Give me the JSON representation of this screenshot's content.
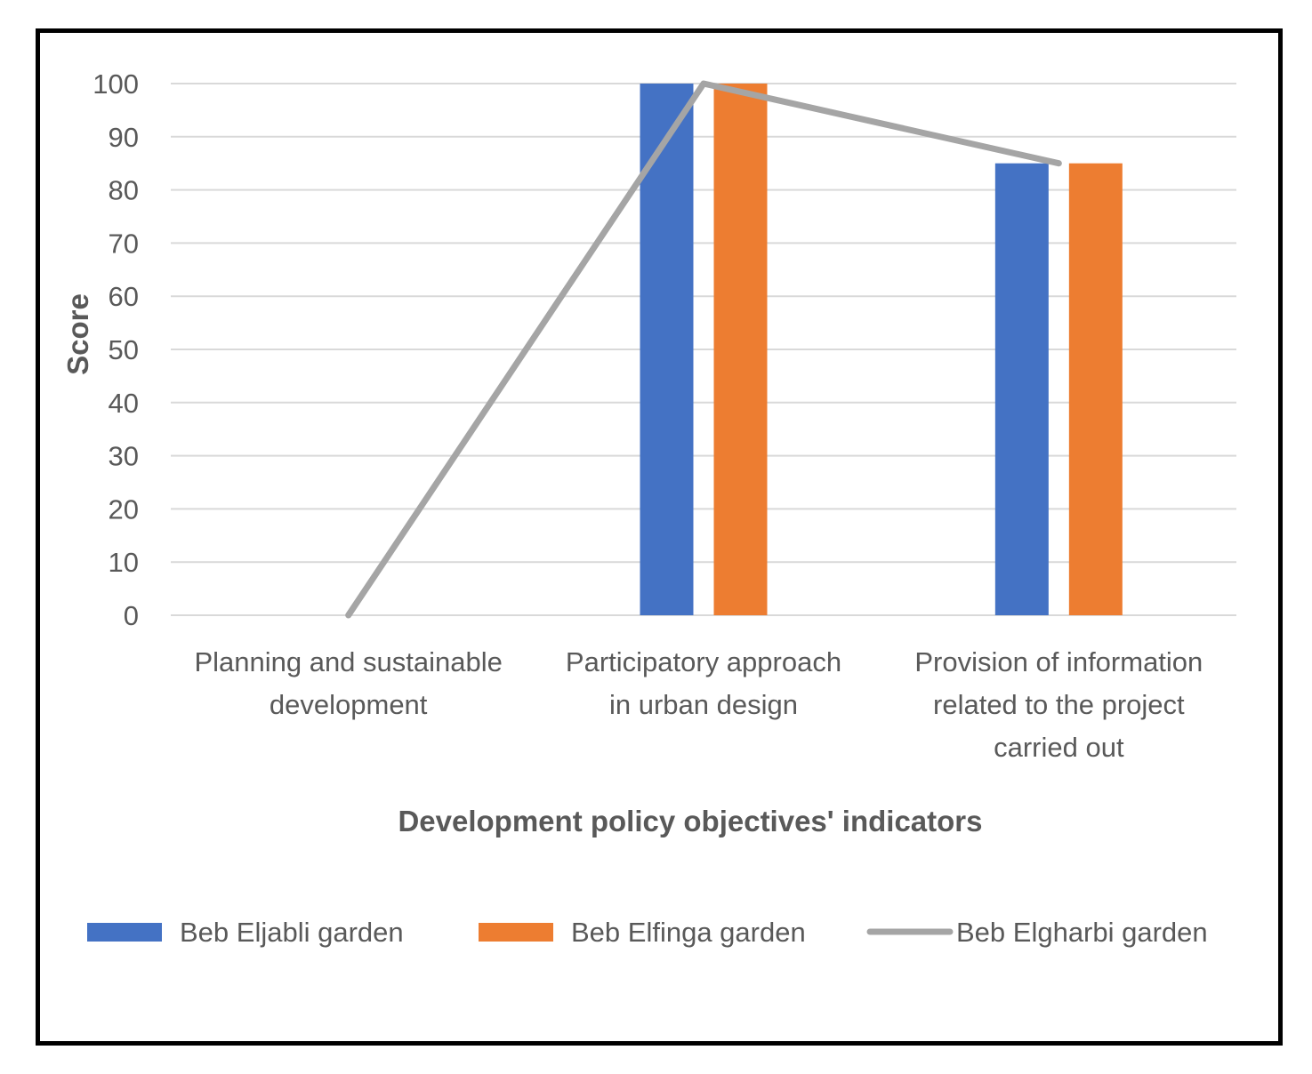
{
  "chart_data": {
    "type": "bar",
    "categories": [
      [
        "Planning and sustainable",
        "development"
      ],
      [
        "Participatory approach",
        "in urban design"
      ],
      [
        "Provision of information",
        "related to the project",
        "carried out"
      ]
    ],
    "series": [
      {
        "name": "Beb Eljabli garden",
        "kind": "bar",
        "color": "#4472C4",
        "values": [
          0,
          100,
          85
        ]
      },
      {
        "name": "Beb Elfinga garden",
        "kind": "bar",
        "color": "#ED7D31",
        "values": [
          0,
          100,
          85
        ]
      },
      {
        "name": "Beb Elgharbi garden",
        "kind": "line",
        "color": "#A5A5A5",
        "values": [
          0,
          100,
          85
        ]
      }
    ],
    "xlabel": "Development policy objectives' indicators",
    "ylabel": "Score",
    "ylim": [
      0,
      100
    ],
    "yticks": [
      "0",
      "10",
      "20",
      "30",
      "40",
      "50",
      "60",
      "70",
      "80",
      "90",
      "100"
    ],
    "grid": true,
    "legend_position": "bottom"
  }
}
